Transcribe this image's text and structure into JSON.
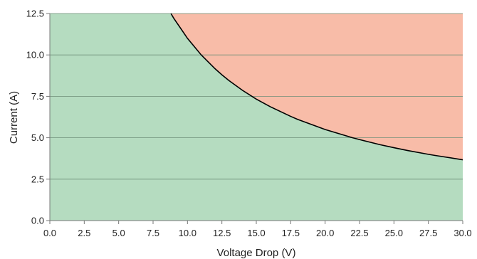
{
  "chart_data": {
    "type": "area",
    "xlabel": "Voltage Drop (V)",
    "ylabel": "Current (A)",
    "xlim": [
      0,
      30
    ],
    "ylim": [
      0,
      12.5
    ],
    "x_ticks": [
      "0.0",
      "2.5",
      "5.0",
      "7.5",
      "10.0",
      "12.5",
      "15.0",
      "17.5",
      "20.0",
      "22.5",
      "25.0",
      "27.5",
      "30.0"
    ],
    "y_ticks": [
      "0.0",
      "2.5",
      "5.0",
      "7.5",
      "10.0",
      "12.5"
    ],
    "grid": "horizontal",
    "curve": {
      "x": [
        8.8,
        9.0,
        10.0,
        11.0,
        12.0,
        12.5,
        13.0,
        14.0,
        15.0,
        16.0,
        17.5,
        18.0,
        20.0,
        22.0,
        22.5,
        24.0,
        25.0,
        26.0,
        27.5,
        28.0,
        30.0
      ],
      "y": [
        12.5,
        12.22,
        11.0,
        10.0,
        9.17,
        8.8,
        8.46,
        7.86,
        7.33,
        6.88,
        6.29,
        6.11,
        5.5,
        5.0,
        4.89,
        4.58,
        4.4,
        4.23,
        4.0,
        3.93,
        3.67
      ]
    },
    "regions": {
      "below_color": "#b5dcc0",
      "above_color": "#f8bca8",
      "line_color": "#000000"
    }
  }
}
